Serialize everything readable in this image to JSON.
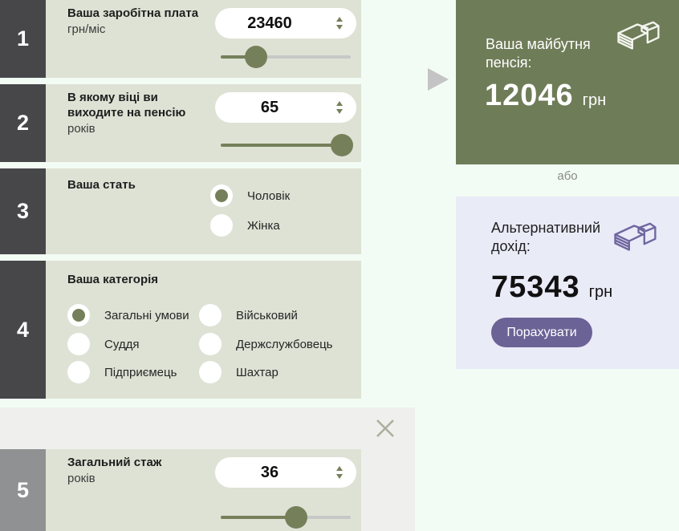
{
  "calculator": {
    "sections": [
      {
        "number": "1",
        "label": "Ваша заробітна плата",
        "sublabel": "грн/міс",
        "value": "23460",
        "slider_percent": 27
      },
      {
        "number": "2",
        "label": "В якому віці ви виходите на пенсію",
        "sublabel": "років",
        "value": "65",
        "slider_percent": 93
      },
      {
        "number": "3",
        "label": "Ваша стать",
        "options": [
          {
            "label": "Чоловік",
            "selected": true
          },
          {
            "label": "Жінка",
            "selected": false
          }
        ]
      },
      {
        "number": "4",
        "label": "Ваша категорія",
        "options": [
          {
            "label": "Загальні умови",
            "selected": true
          },
          {
            "label": "Військовий",
            "selected": false
          },
          {
            "label": "Суддя",
            "selected": false
          },
          {
            "label": "Держслужбовець",
            "selected": false
          },
          {
            "label": "Підприємець",
            "selected": false
          },
          {
            "label": "Шахтар",
            "selected": false
          }
        ]
      },
      {
        "number": "5",
        "label": "Загальний стаж",
        "sublabel": "років",
        "value": "36",
        "slider_percent": 58
      }
    ]
  },
  "result_panel": {
    "label": "Ваша майбутня пенсія:",
    "value": "12046",
    "currency": "грн",
    "icon": "money-stack-icon"
  },
  "divider_text": "або",
  "alt_panel": {
    "label": "Альтернативний дохід:",
    "value": "75343",
    "currency": "грн",
    "button_label": "Порахувати",
    "icon": "money-stack-icon"
  },
  "modal": {
    "close_icon": "close-icon"
  },
  "colors": {
    "accent_olive": "#75805A",
    "result_green": "#6F7C58",
    "panel_light": "#DEE2D5",
    "lavender": "#E9EBF7",
    "purple": "#6B6296",
    "dark_block": "#47474A",
    "grey_block": "#8F9192",
    "background_mint": "#F2FCF4"
  }
}
